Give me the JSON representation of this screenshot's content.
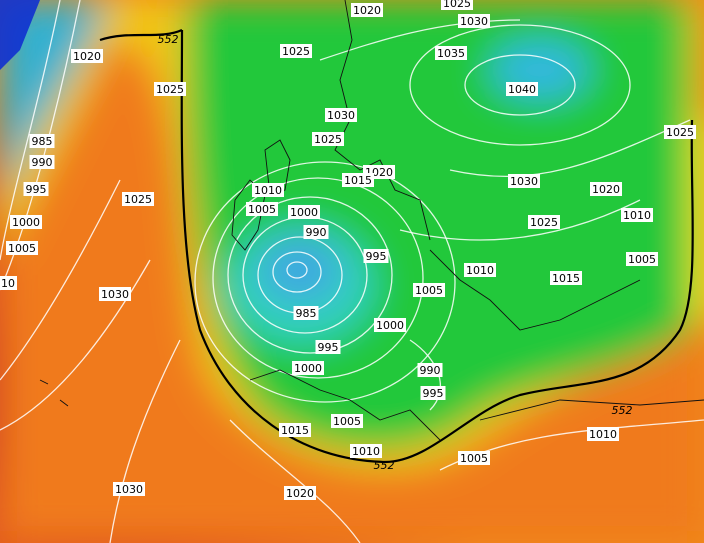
{
  "map": {
    "isobar_labels": [
      "1020",
      "1025",
      "1030",
      "1020",
      "1025",
      "1035",
      "1025",
      "1040",
      "1030",
      "1025",
      "1025",
      "985",
      "990",
      "995",
      "1020",
      "1015",
      "1030",
      "1020",
      "1010",
      "1025",
      "1005",
      "1000",
      "1010",
      "1025",
      "1000",
      "990",
      "1005",
      "995",
      "1005",
      "1010",
      "1015",
      "10",
      "1005",
      "1030",
      "985",
      "1000",
      "995",
      "1000",
      "990",
      "995",
      "1015",
      "1005",
      "1010",
      "1010",
      "1005",
      "1030",
      "1020"
    ],
    "geopotential_labels": [
      "552",
      "552",
      "552"
    ]
  }
}
